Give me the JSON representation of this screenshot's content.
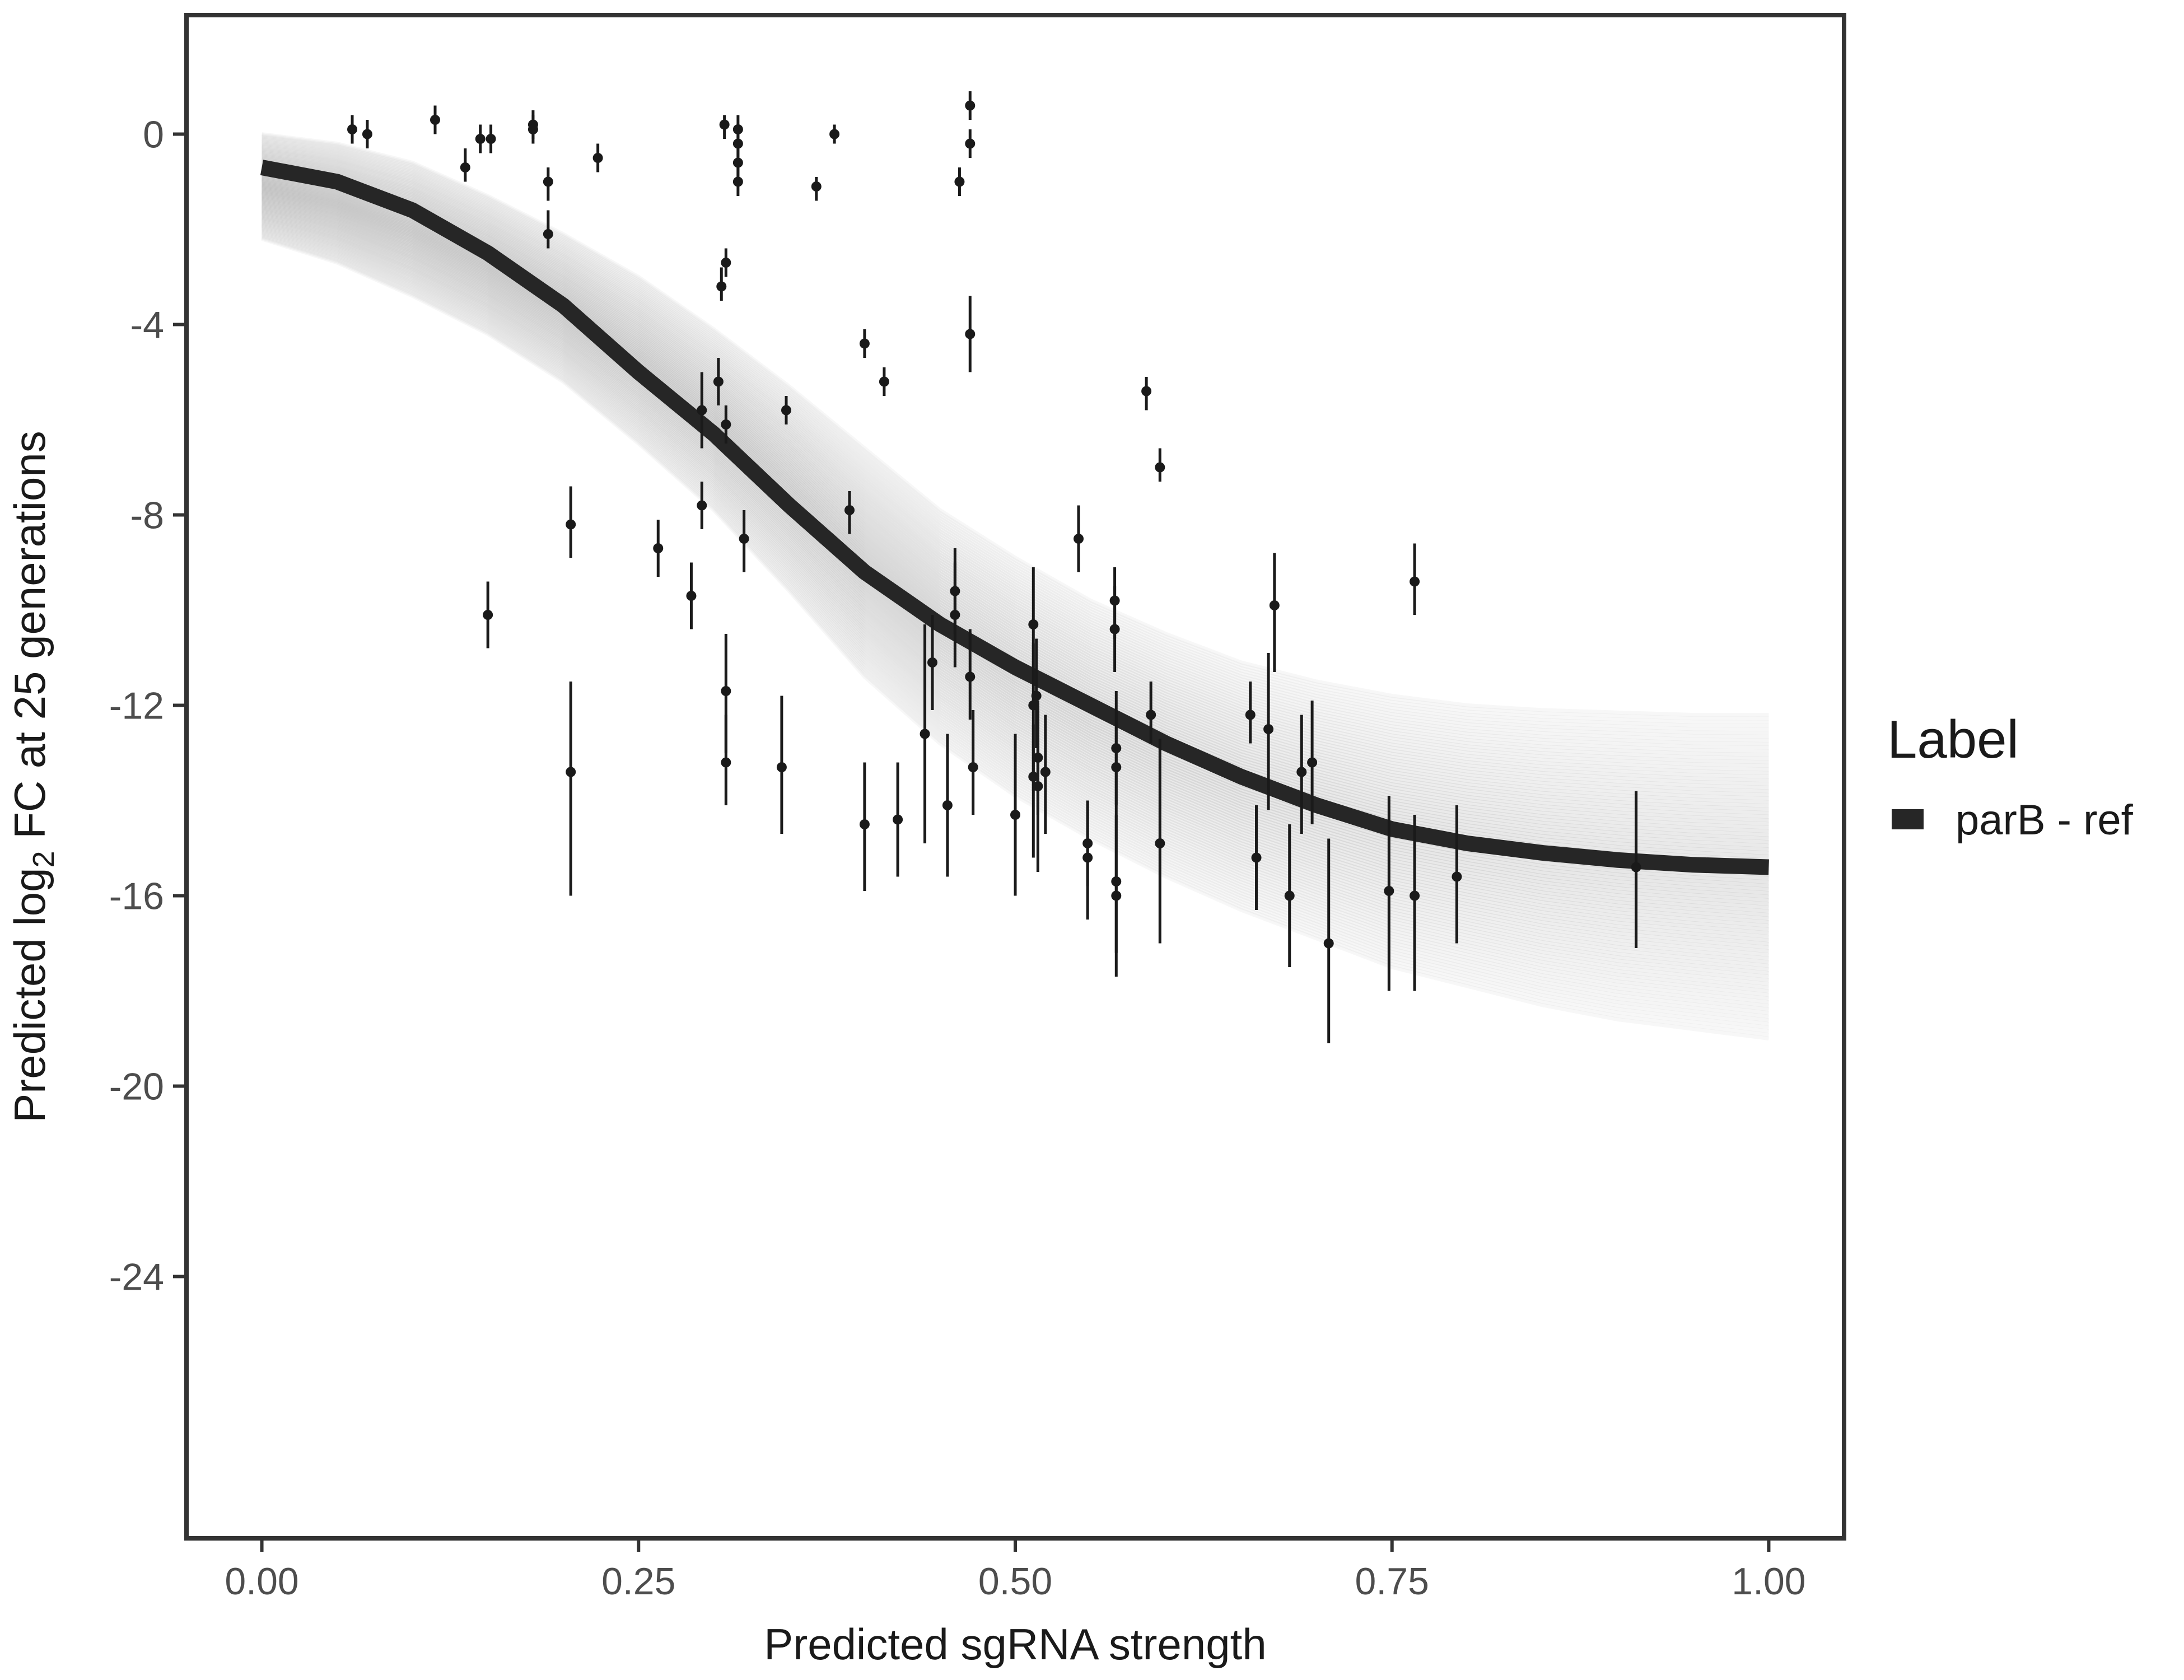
{
  "chart_data": {
    "type": "scatter",
    "xlabel": "Predicted sgRNA strength",
    "ylabel": {
      "prefix": "Predicted  log",
      "subscript": "2",
      "suffix": " FC at 25 generations"
    },
    "xlim": [
      -0.05,
      1.05
    ],
    "ylim": [
      -29.5,
      2.5
    ],
    "x_ticks": [
      0,
      0.25,
      0.5,
      0.75,
      1
    ],
    "x_tick_labels": [
      "0.00",
      "0.25",
      "0.50",
      "0.75",
      "1.00"
    ],
    "y_ticks": [
      0,
      -4,
      -8,
      -12,
      -16,
      -20,
      -24
    ],
    "y_tick_labels": [
      "0",
      "-4",
      "-8",
      "-12",
      "-16",
      "-20",
      "-24"
    ],
    "grid": false,
    "legend": {
      "title": "Label",
      "placement": "right",
      "entries": [
        {
          "label": "parB - ref",
          "color": "#262626"
        }
      ]
    },
    "colors": {
      "fit": "#262626",
      "posterior": "#aaaaaa",
      "points": "#1a1a1a",
      "frame": "#333333"
    },
    "fit_curve": {
      "name": "parB - ref",
      "x": [
        0.0,
        0.05,
        0.1,
        0.15,
        0.2,
        0.25,
        0.3,
        0.35,
        0.4,
        0.45,
        0.5,
        0.55,
        0.6,
        0.65,
        0.7,
        0.75,
        0.8,
        0.85,
        0.9,
        0.95,
        1.0
      ],
      "y": [
        -0.7,
        -1.0,
        -1.6,
        -2.5,
        -3.6,
        -5.0,
        -6.3,
        -7.8,
        -9.2,
        -10.3,
        -11.2,
        -12.0,
        -12.8,
        -13.5,
        -14.1,
        -14.6,
        -14.9,
        -15.1,
        -15.25,
        -15.35,
        -15.4
      ]
    },
    "band": {
      "x": [
        0.0,
        0.05,
        0.1,
        0.15,
        0.2,
        0.25,
        0.3,
        0.35,
        0.4,
        0.45,
        0.5,
        0.55,
        0.6,
        0.65,
        0.7,
        0.75,
        0.8,
        0.85,
        0.9,
        0.95,
        1.0
      ],
      "upper": [
        0.0,
        -0.2,
        -0.6,
        -1.3,
        -2.1,
        -3.0,
        -4.1,
        -5.3,
        -6.6,
        -7.9,
        -8.9,
        -9.8,
        -10.5,
        -11.1,
        -11.5,
        -11.8,
        -12.0,
        -12.1,
        -12.15,
        -12.2,
        -12.2
      ],
      "lower": [
        -2.2,
        -2.7,
        -3.4,
        -4.2,
        -5.2,
        -6.5,
        -7.9,
        -9.6,
        -11.4,
        -12.8,
        -13.9,
        -14.8,
        -15.6,
        -16.3,
        -16.9,
        -17.5,
        -17.9,
        -18.3,
        -18.6,
        -18.8,
        -19.0
      ]
    },
    "points": [
      {
        "x": 0.06,
        "y": 0.1,
        "lo": -0.2,
        "hi": 0.4
      },
      {
        "x": 0.07,
        "y": 0.0,
        "lo": -0.3,
        "hi": 0.3
      },
      {
        "x": 0.115,
        "y": 0.3,
        "lo": 0.0,
        "hi": 0.6
      },
      {
        "x": 0.135,
        "y": -0.7,
        "lo": -1.0,
        "hi": -0.3
      },
      {
        "x": 0.145,
        "y": -0.1,
        "lo": -0.4,
        "hi": 0.2
      },
      {
        "x": 0.152,
        "y": -0.1,
        "lo": -0.4,
        "hi": 0.2
      },
      {
        "x": 0.15,
        "y": -10.1,
        "lo": -10.8,
        "hi": -9.4
      },
      {
        "x": 0.18,
        "y": 0.2,
        "lo": -0.1,
        "hi": 0.5
      },
      {
        "x": 0.18,
        "y": 0.1,
        "lo": -0.2,
        "hi": 0.4
      },
      {
        "x": 0.19,
        "y": -1.0,
        "lo": -1.4,
        "hi": -0.7
      },
      {
        "x": 0.19,
        "y": -2.1,
        "lo": -2.4,
        "hi": -1.6
      },
      {
        "x": 0.205,
        "y": -8.2,
        "lo": -8.9,
        "hi": -7.4
      },
      {
        "x": 0.205,
        "y": -13.4,
        "lo": -16.0,
        "hi": -11.5
      },
      {
        "x": 0.223,
        "y": -0.5,
        "lo": -0.8,
        "hi": -0.2
      },
      {
        "x": 0.263,
        "y": -8.7,
        "lo": -9.3,
        "hi": -8.1
      },
      {
        "x": 0.285,
        "y": -9.7,
        "lo": -10.4,
        "hi": -9.0
      },
      {
        "x": 0.292,
        "y": -5.8,
        "lo": -6.6,
        "hi": -5.0
      },
      {
        "x": 0.292,
        "y": -7.8,
        "lo": -8.3,
        "hi": -7.3
      },
      {
        "x": 0.303,
        "y": -5.2,
        "lo": -5.7,
        "hi": -4.7
      },
      {
        "x": 0.305,
        "y": -3.2,
        "lo": -3.5,
        "hi": -2.8
      },
      {
        "x": 0.307,
        "y": 0.2,
        "lo": -0.1,
        "hi": 0.4
      },
      {
        "x": 0.308,
        "y": -2.7,
        "lo": -3.0,
        "hi": -2.4
      },
      {
        "x": 0.308,
        "y": -6.1,
        "lo": -6.5,
        "hi": -5.7
      },
      {
        "x": 0.308,
        "y": -11.7,
        "lo": -13.0,
        "hi": -10.5
      },
      {
        "x": 0.308,
        "y": -13.2,
        "lo": -14.1,
        "hi": -12.2
      },
      {
        "x": 0.316,
        "y": 0.1,
        "lo": -0.2,
        "hi": 0.4
      },
      {
        "x": 0.316,
        "y": -0.2,
        "lo": -0.5,
        "hi": 0.1
      },
      {
        "x": 0.316,
        "y": -0.6,
        "lo": -0.9,
        "hi": -0.3
      },
      {
        "x": 0.316,
        "y": -1.0,
        "lo": -1.3,
        "hi": -0.7
      },
      {
        "x": 0.32,
        "y": -8.5,
        "lo": -9.2,
        "hi": -7.9
      },
      {
        "x": 0.345,
        "y": -13.3,
        "lo": -14.7,
        "hi": -11.8
      },
      {
        "x": 0.348,
        "y": -5.8,
        "lo": -6.1,
        "hi": -5.5
      },
      {
        "x": 0.368,
        "y": -1.1,
        "lo": -1.4,
        "hi": -0.9
      },
      {
        "x": 0.38,
        "y": 0.0,
        "lo": -0.2,
        "hi": 0.2
      },
      {
        "x": 0.39,
        "y": -7.9,
        "lo": -8.4,
        "hi": -7.5
      },
      {
        "x": 0.4,
        "y": -4.4,
        "lo": -4.7,
        "hi": -4.1
      },
      {
        "x": 0.4,
        "y": -14.5,
        "lo": -15.9,
        "hi": -13.2
      },
      {
        "x": 0.413,
        "y": -5.2,
        "lo": -5.5,
        "hi": -4.9
      },
      {
        "x": 0.422,
        "y": -14.4,
        "lo": -15.6,
        "hi": -13.2
      },
      {
        "x": 0.44,
        "y": -12.6,
        "lo": -14.9,
        "hi": -10.3
      },
      {
        "x": 0.445,
        "y": -11.1,
        "lo": -12.1,
        "hi": -10.1
      },
      {
        "x": 0.455,
        "y": -14.1,
        "lo": -15.6,
        "hi": -12.6
      },
      {
        "x": 0.46,
        "y": -9.6,
        "lo": -10.5,
        "hi": -8.7
      },
      {
        "x": 0.46,
        "y": -10.1,
        "lo": -11.2,
        "hi": -9.0
      },
      {
        "x": 0.463,
        "y": -1.0,
        "lo": -1.3,
        "hi": -0.7
      },
      {
        "x": 0.47,
        "y": -0.2,
        "lo": -0.5,
        "hi": 0.1
      },
      {
        "x": 0.47,
        "y": 0.6,
        "lo": 0.3,
        "hi": 0.9
      },
      {
        "x": 0.47,
        "y": -4.2,
        "lo": -5.0,
        "hi": -3.4
      },
      {
        "x": 0.47,
        "y": -11.4,
        "lo": -12.3,
        "hi": -10.4
      },
      {
        "x": 0.472,
        "y": -13.3,
        "lo": -14.3,
        "hi": -12.1
      },
      {
        "x": 0.5,
        "y": -14.3,
        "lo": -16.0,
        "hi": -12.6
      },
      {
        "x": 0.512,
        "y": -10.3,
        "lo": -11.5,
        "hi": -9.1
      },
      {
        "x": 0.512,
        "y": -12.0,
        "lo": -13.8,
        "hi": -10.7
      },
      {
        "x": 0.512,
        "y": -13.5,
        "lo": -15.2,
        "hi": -12.4
      },
      {
        "x": 0.514,
        "y": -11.8,
        "lo": -12.9,
        "hi": -10.6
      },
      {
        "x": 0.515,
        "y": -13.1,
        "lo": -14.3,
        "hi": -11.9
      },
      {
        "x": 0.515,
        "y": -13.7,
        "lo": -15.5,
        "hi": -12.0
      },
      {
        "x": 0.52,
        "y": -13.4,
        "lo": -14.7,
        "hi": -12.2
      },
      {
        "x": 0.542,
        "y": -8.5,
        "lo": -9.2,
        "hi": -7.8
      },
      {
        "x": 0.548,
        "y": -14.9,
        "lo": -15.8,
        "hi": -14.0
      },
      {
        "x": 0.548,
        "y": -15.2,
        "lo": -16.5,
        "hi": -14.0
      },
      {
        "x": 0.566,
        "y": -9.8,
        "lo": -10.6,
        "hi": -9.1
      },
      {
        "x": 0.566,
        "y": -10.4,
        "lo": -11.3,
        "hi": -9.5
      },
      {
        "x": 0.567,
        "y": -12.9,
        "lo": -14.1,
        "hi": -11.7
      },
      {
        "x": 0.567,
        "y": -13.3,
        "lo": -14.5,
        "hi": -12.1
      },
      {
        "x": 0.567,
        "y": -15.7,
        "lo": -17.2,
        "hi": -14.3
      },
      {
        "x": 0.567,
        "y": -16.0,
        "lo": -17.7,
        "hi": -14.5
      },
      {
        "x": 0.587,
        "y": -5.4,
        "lo": -5.8,
        "hi": -5.1
      },
      {
        "x": 0.59,
        "y": -12.2,
        "lo": -12.8,
        "hi": -11.5
      },
      {
        "x": 0.596,
        "y": -7.0,
        "lo": -7.3,
        "hi": -6.6
      },
      {
        "x": 0.596,
        "y": -14.9,
        "lo": -17.0,
        "hi": -12.7
      },
      {
        "x": 0.656,
        "y": -12.2,
        "lo": -12.8,
        "hi": -11.5
      },
      {
        "x": 0.66,
        "y": -15.2,
        "lo": -16.3,
        "hi": -14.1
      },
      {
        "x": 0.668,
        "y": -12.5,
        "lo": -14.2,
        "hi": -10.9
      },
      {
        "x": 0.672,
        "y": -9.9,
        "lo": -11.3,
        "hi": -8.8
      },
      {
        "x": 0.682,
        "y": -16.0,
        "lo": -17.5,
        "hi": -14.5
      },
      {
        "x": 0.69,
        "y": -13.4,
        "lo": -14.7,
        "hi": -12.2
      },
      {
        "x": 0.697,
        "y": -13.2,
        "lo": -14.5,
        "hi": -11.9
      },
      {
        "x": 0.708,
        "y": -17.0,
        "lo": -19.1,
        "hi": -14.8
      },
      {
        "x": 0.748,
        "y": -15.9,
        "lo": -18.0,
        "hi": -13.9
      },
      {
        "x": 0.765,
        "y": -9.4,
        "lo": -10.1,
        "hi": -8.6
      },
      {
        "x": 0.765,
        "y": -16.0,
        "lo": -18.0,
        "hi": -14.3
      },
      {
        "x": 0.793,
        "y": -15.6,
        "lo": -17.0,
        "hi": -14.1
      },
      {
        "x": 0.912,
        "y": -15.4,
        "lo": -17.1,
        "hi": -13.8
      }
    ]
  }
}
